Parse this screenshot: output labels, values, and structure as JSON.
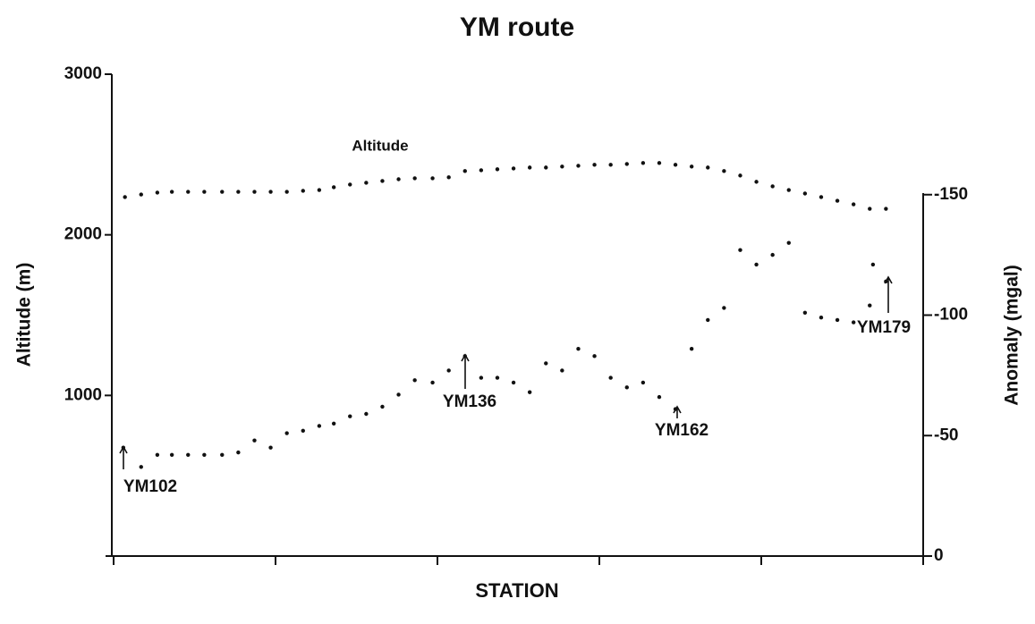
{
  "chart_data": {
    "type": "scatter",
    "title": "YM route",
    "xlabel": "STATION",
    "ylabel": "Altitude (m)",
    "y2label": "Anomaly (mgal)",
    "xlim": [
      0,
      5
    ],
    "xticks": [
      0,
      1,
      2,
      3,
      4,
      5
    ],
    "ylim": [
      0,
      3000
    ],
    "yticks": [
      1000,
      2000,
      3000
    ],
    "y2lim": [
      0,
      -200
    ],
    "y2ticks": [
      0,
      -50,
      -100,
      -150
    ],
    "color": "#111111",
    "series": [
      {
        "name": "Altitude",
        "color": "#111111",
        "x": [
          0.07,
          0.17,
          0.27,
          0.36,
          0.46,
          0.56,
          0.67,
          0.77,
          0.87,
          0.97,
          1.07,
          1.17,
          1.27,
          1.36,
          1.46,
          1.56,
          1.66,
          1.76,
          1.86,
          1.97,
          2.07,
          2.17,
          2.27,
          2.37,
          2.47,
          2.57,
          2.67,
          2.77,
          2.87,
          2.97,
          3.07,
          3.17,
          3.27,
          3.37,
          3.47,
          3.57,
          3.67,
          3.77,
          3.87,
          3.97,
          4.07,
          4.17,
          4.27,
          4.37,
          4.47,
          4.57,
          4.67,
          4.77
        ],
        "values": [
          2235,
          2251,
          2263,
          2268,
          2268,
          2268,
          2268,
          2268,
          2268,
          2268,
          2268,
          2274,
          2279,
          2296,
          2313,
          2324,
          2335,
          2346,
          2352,
          2352,
          2358,
          2397,
          2402,
          2408,
          2413,
          2419,
          2419,
          2425,
          2430,
          2436,
          2436,
          2441,
          2447,
          2447,
          2436,
          2425,
          2419,
          2397,
          2369,
          2330,
          2302,
          2279,
          2257,
          2235,
          2212,
          2190,
          2162,
          2162
        ]
      },
      {
        "color": "#111111",
        "axis": "y2",
        "x": [
          0.06,
          0.17,
          0.27,
          0.36,
          0.46,
          0.56,
          0.67,
          0.77,
          0.87,
          0.97,
          1.07,
          1.17,
          1.27,
          1.36,
          1.46,
          1.56,
          1.66,
          1.76,
          1.86,
          1.97,
          2.07,
          2.17,
          2.27,
          2.37,
          2.47,
          2.57,
          2.67,
          2.77,
          2.87,
          2.97,
          3.07,
          3.17,
          3.27,
          3.37,
          3.47,
          3.57,
          3.67,
          3.77,
          3.87,
          3.97,
          4.07,
          4.17,
          4.27,
          4.37,
          4.47,
          4.57,
          4.67,
          4.69,
          4.77
        ],
        "values": [
          -45,
          -37,
          -42,
          -42,
          -42,
          -42,
          -42,
          -43,
          -48,
          -45,
          -51,
          -52,
          -54,
          -55,
          -58,
          -59,
          -62,
          -67,
          -73,
          -72,
          -77,
          -83,
          -74,
          -74,
          -72,
          -68,
          -80,
          -77,
          -86,
          -83,
          -74,
          -70,
          -72,
          -66,
          -61,
          -86,
          -98,
          -103,
          -127,
          -121,
          -125,
          -130,
          -101,
          -99,
          -98,
          -97,
          -104,
          -121,
          -114
        ]
      }
    ],
    "annotations": [
      {
        "text": "YM102"
      },
      {
        "text": "YM136"
      },
      {
        "text": "YM162"
      },
      {
        "text": "YM179"
      }
    ]
  }
}
